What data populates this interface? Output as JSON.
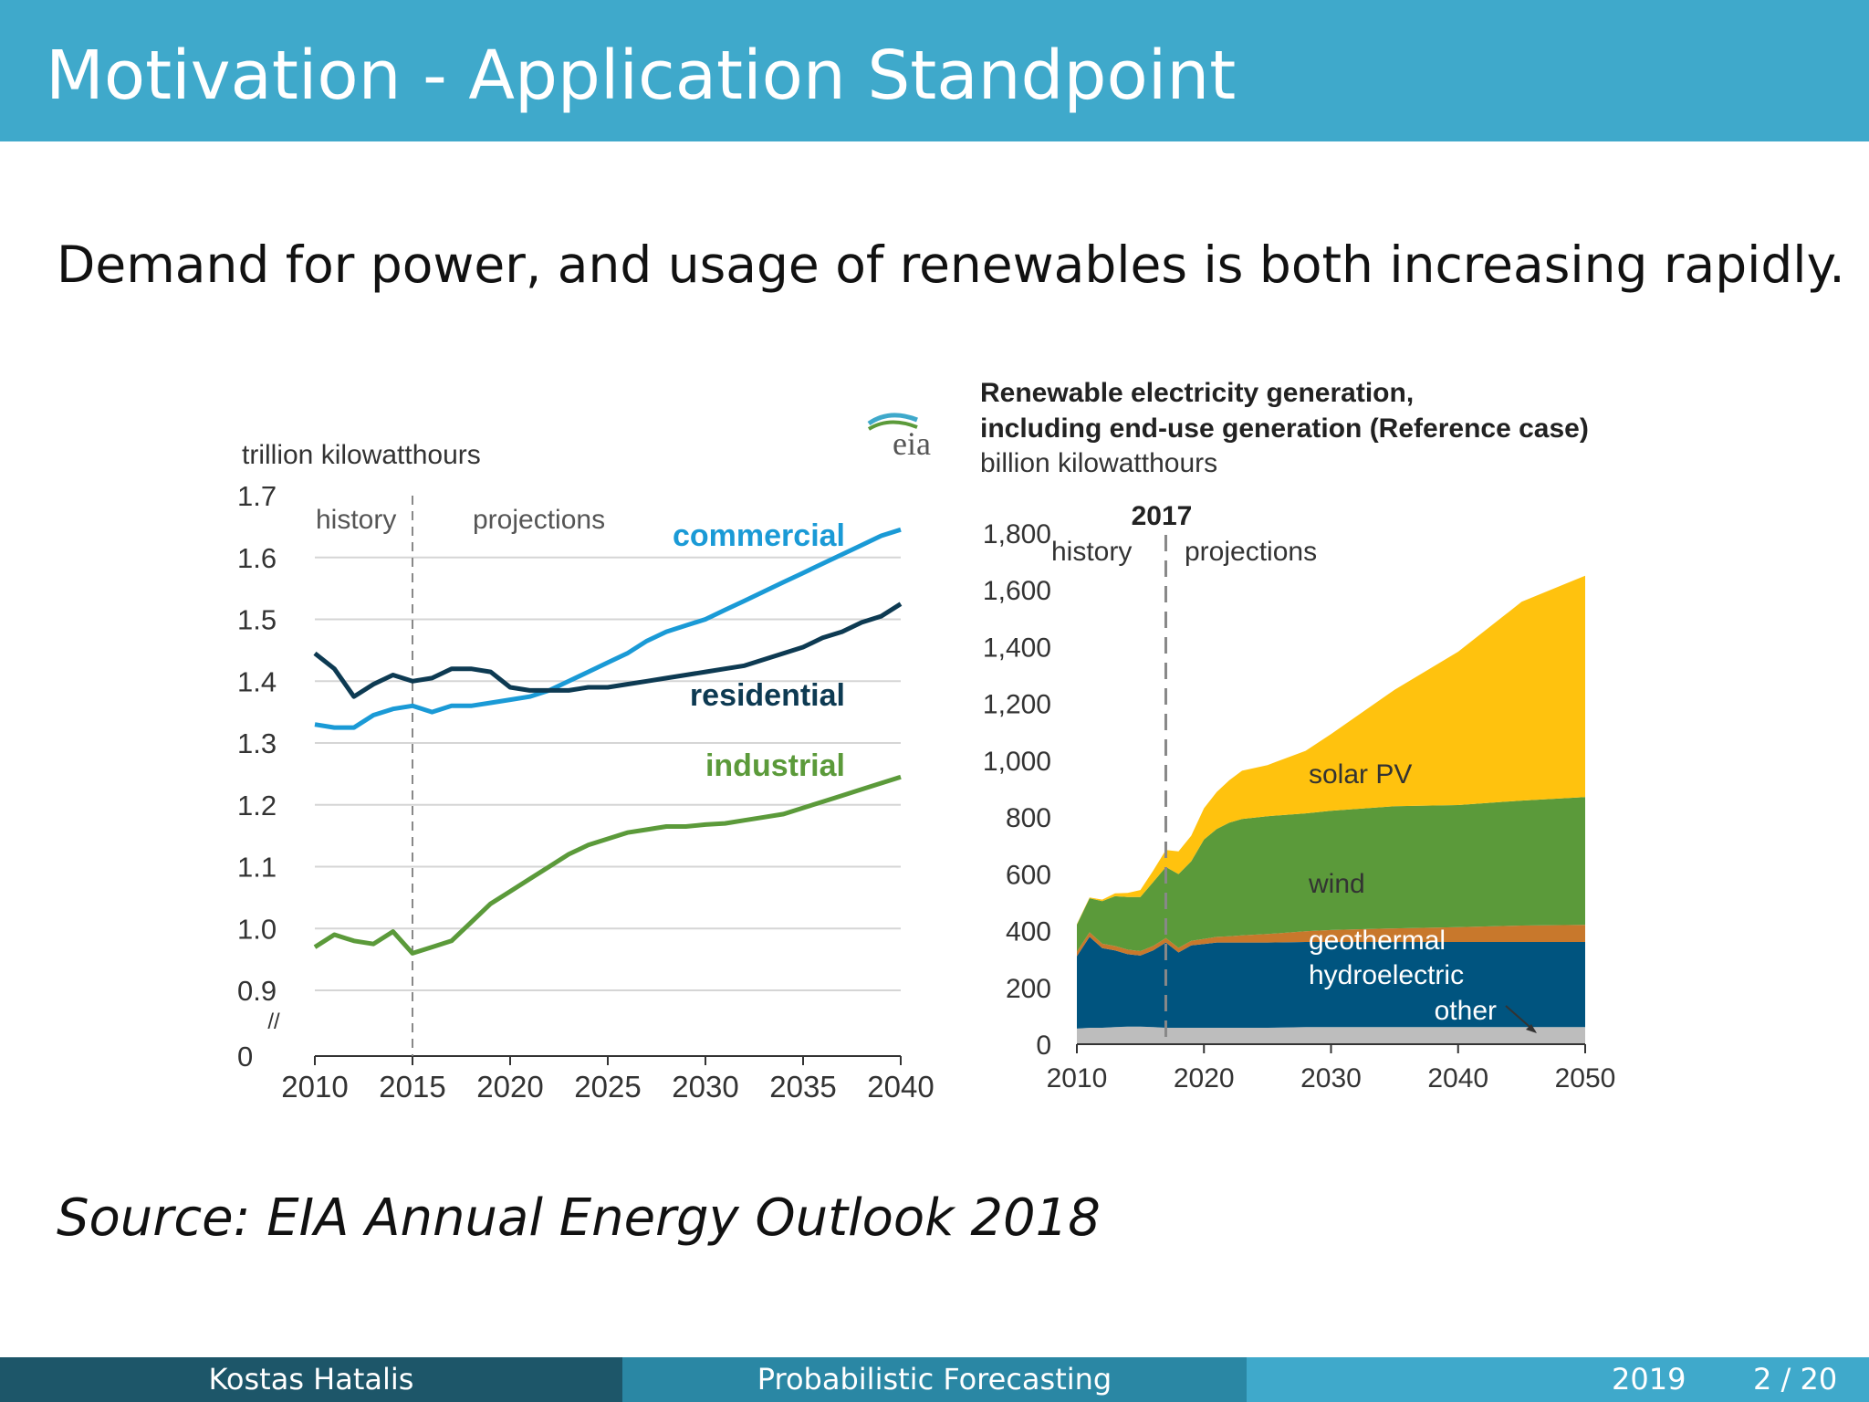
{
  "slide": {
    "title": "Motivation - Application Standpoint",
    "headline": "Demand for power, and usage of renewables is both increasing rapidly.",
    "source": "Source: EIA Annual Energy Outlook 2018"
  },
  "footer": {
    "author": "Kostas Hatalis",
    "title": "Probabilistic Forecasting",
    "year": "2019",
    "page": "2 / 20"
  },
  "chart_data": [
    {
      "type": "line",
      "logo": "eia",
      "ylabel": "trillion kilowatthours",
      "history_label": "history",
      "projections_label": "projections",
      "divider_year": 2015,
      "x_ticks": [
        2010,
        2015,
        2020,
        2025,
        2030,
        2035,
        2040
      ],
      "x_tick_labels": [
        "2010",
        "2015",
        "2020",
        "2025",
        "2030",
        "2035",
        "2040"
      ],
      "y_ticks": [
        1.7,
        1.6,
        1.5,
        1.4,
        1.3,
        1.2,
        1.1,
        1.0,
        0.9
      ],
      "y_tick_labels": [
        "1.7",
        "1.6",
        "1.5",
        "1.4",
        "1.3",
        "1.2",
        "1.1",
        "1.0",
        "0.9",
        "0"
      ],
      "axis_break_label": "//",
      "ylim": [
        0.9,
        1.7
      ],
      "xlim": [
        2010,
        2040
      ],
      "series": [
        {
          "name": "commercial",
          "color": "#1a9ad6",
          "x": [
            2010,
            2011,
            2012,
            2013,
            2014,
            2015,
            2016,
            2017,
            2018,
            2019,
            2020,
            2021,
            2022,
            2023,
            2024,
            2025,
            2026,
            2027,
            2028,
            2029,
            2030,
            2031,
            2032,
            2033,
            2034,
            2035,
            2036,
            2037,
            2038,
            2039,
            2040
          ],
          "values": [
            1.33,
            1.325,
            1.325,
            1.345,
            1.355,
            1.36,
            1.35,
            1.36,
            1.36,
            1.365,
            1.37,
            1.375,
            1.385,
            1.4,
            1.415,
            1.43,
            1.445,
            1.465,
            1.48,
            1.49,
            1.5,
            1.515,
            1.53,
            1.545,
            1.56,
            1.575,
            1.59,
            1.605,
            1.62,
            1.635,
            1.645
          ]
        },
        {
          "name": "residential",
          "color": "#0d3a52",
          "x": [
            2010,
            2011,
            2012,
            2013,
            2014,
            2015,
            2016,
            2017,
            2018,
            2019,
            2020,
            2021,
            2022,
            2023,
            2024,
            2025,
            2026,
            2027,
            2028,
            2029,
            2030,
            2031,
            2032,
            2033,
            2034,
            2035,
            2036,
            2037,
            2038,
            2039,
            2040
          ],
          "values": [
            1.445,
            1.42,
            1.375,
            1.395,
            1.41,
            1.4,
            1.405,
            1.42,
            1.42,
            1.415,
            1.39,
            1.385,
            1.385,
            1.385,
            1.39,
            1.39,
            1.395,
            1.4,
            1.405,
            1.41,
            1.415,
            1.42,
            1.425,
            1.435,
            1.445,
            1.455,
            1.47,
            1.48,
            1.495,
            1.505,
            1.525
          ]
        },
        {
          "name": "industrial",
          "color": "#5b9a3a",
          "x": [
            2010,
            2011,
            2012,
            2013,
            2014,
            2015,
            2016,
            2017,
            2018,
            2019,
            2020,
            2021,
            2022,
            2023,
            2024,
            2025,
            2026,
            2027,
            2028,
            2029,
            2030,
            2031,
            2032,
            2033,
            2034,
            2035,
            2036,
            2037,
            2038,
            2039,
            2040
          ],
          "values": [
            0.97,
            0.99,
            0.98,
            0.975,
            0.995,
            0.96,
            0.97,
            0.98,
            1.01,
            1.04,
            1.06,
            1.08,
            1.1,
            1.12,
            1.135,
            1.145,
            1.155,
            1.16,
            1.165,
            1.165,
            1.168,
            1.17,
            1.175,
            1.18,
            1.185,
            1.195,
            1.205,
            1.215,
            1.225,
            1.235,
            1.245
          ]
        }
      ]
    },
    {
      "type": "area",
      "title_line1": "Renewable electricity generation,",
      "title_line2": "including end-use generation (Reference case)",
      "ylabel": "billion kilowatthours",
      "divider_year": 2017,
      "divider_label": "2017",
      "history_label": "history",
      "projections_label": "projections",
      "x_ticks": [
        2010,
        2020,
        2030,
        2040,
        2050
      ],
      "x_tick_labels": [
        "2010",
        "2020",
        "2030",
        "2040",
        "2050"
      ],
      "y_ticks": [
        0,
        200,
        400,
        600,
        800,
        1000,
        1200,
        1400,
        1600,
        1800
      ],
      "y_tick_labels": [
        "0",
        "200",
        "400",
        "600",
        "800",
        "1,000",
        "1,200",
        "1,400",
        "1,600",
        "1,800"
      ],
      "ylim": [
        0,
        1800
      ],
      "xlim": [
        2010,
        2050
      ],
      "x": [
        2010,
        2011,
        2012,
        2013,
        2014,
        2015,
        2016,
        2017,
        2018,
        2019,
        2020,
        2021,
        2022,
        2023,
        2025,
        2028,
        2030,
        2035,
        2040,
        2045,
        2050
      ],
      "series": [
        {
          "name": "other",
          "color": "#bdbdbd",
          "values": [
            55,
            58,
            58,
            60,
            62,
            62,
            60,
            58,
            58,
            58,
            58,
            58,
            58,
            58,
            58,
            60,
            60,
            60,
            60,
            60,
            60
          ]
        },
        {
          "name": "hydroelectric",
          "color": "#00547f",
          "values": [
            255,
            320,
            280,
            270,
            255,
            250,
            270,
            300,
            265,
            290,
            295,
            300,
            300,
            300,
            300,
            300,
            300,
            300,
            300,
            300,
            300
          ]
        },
        {
          "name": "geothermal",
          "color": "#c8782c",
          "values": [
            16,
            16,
            16,
            16,
            16,
            16,
            16,
            16,
            16,
            16,
            18,
            20,
            22,
            25,
            30,
            38,
            42,
            48,
            52,
            58,
            60
          ]
        },
        {
          "name": "wind",
          "color": "#5b9a3a",
          "values": [
            95,
            120,
            150,
            175,
            185,
            190,
            225,
            250,
            260,
            280,
            350,
            380,
            400,
            410,
            415,
            415,
            420,
            430,
            430,
            440,
            450
          ]
        },
        {
          "name": "solar PV",
          "color": "#ffc20e",
          "values": [
            2,
            3,
            5,
            10,
            15,
            25,
            40,
            60,
            80,
            90,
            110,
            130,
            150,
            170,
            180,
            220,
            270,
            410,
            540,
            700,
            780
          ]
        }
      ]
    }
  ]
}
